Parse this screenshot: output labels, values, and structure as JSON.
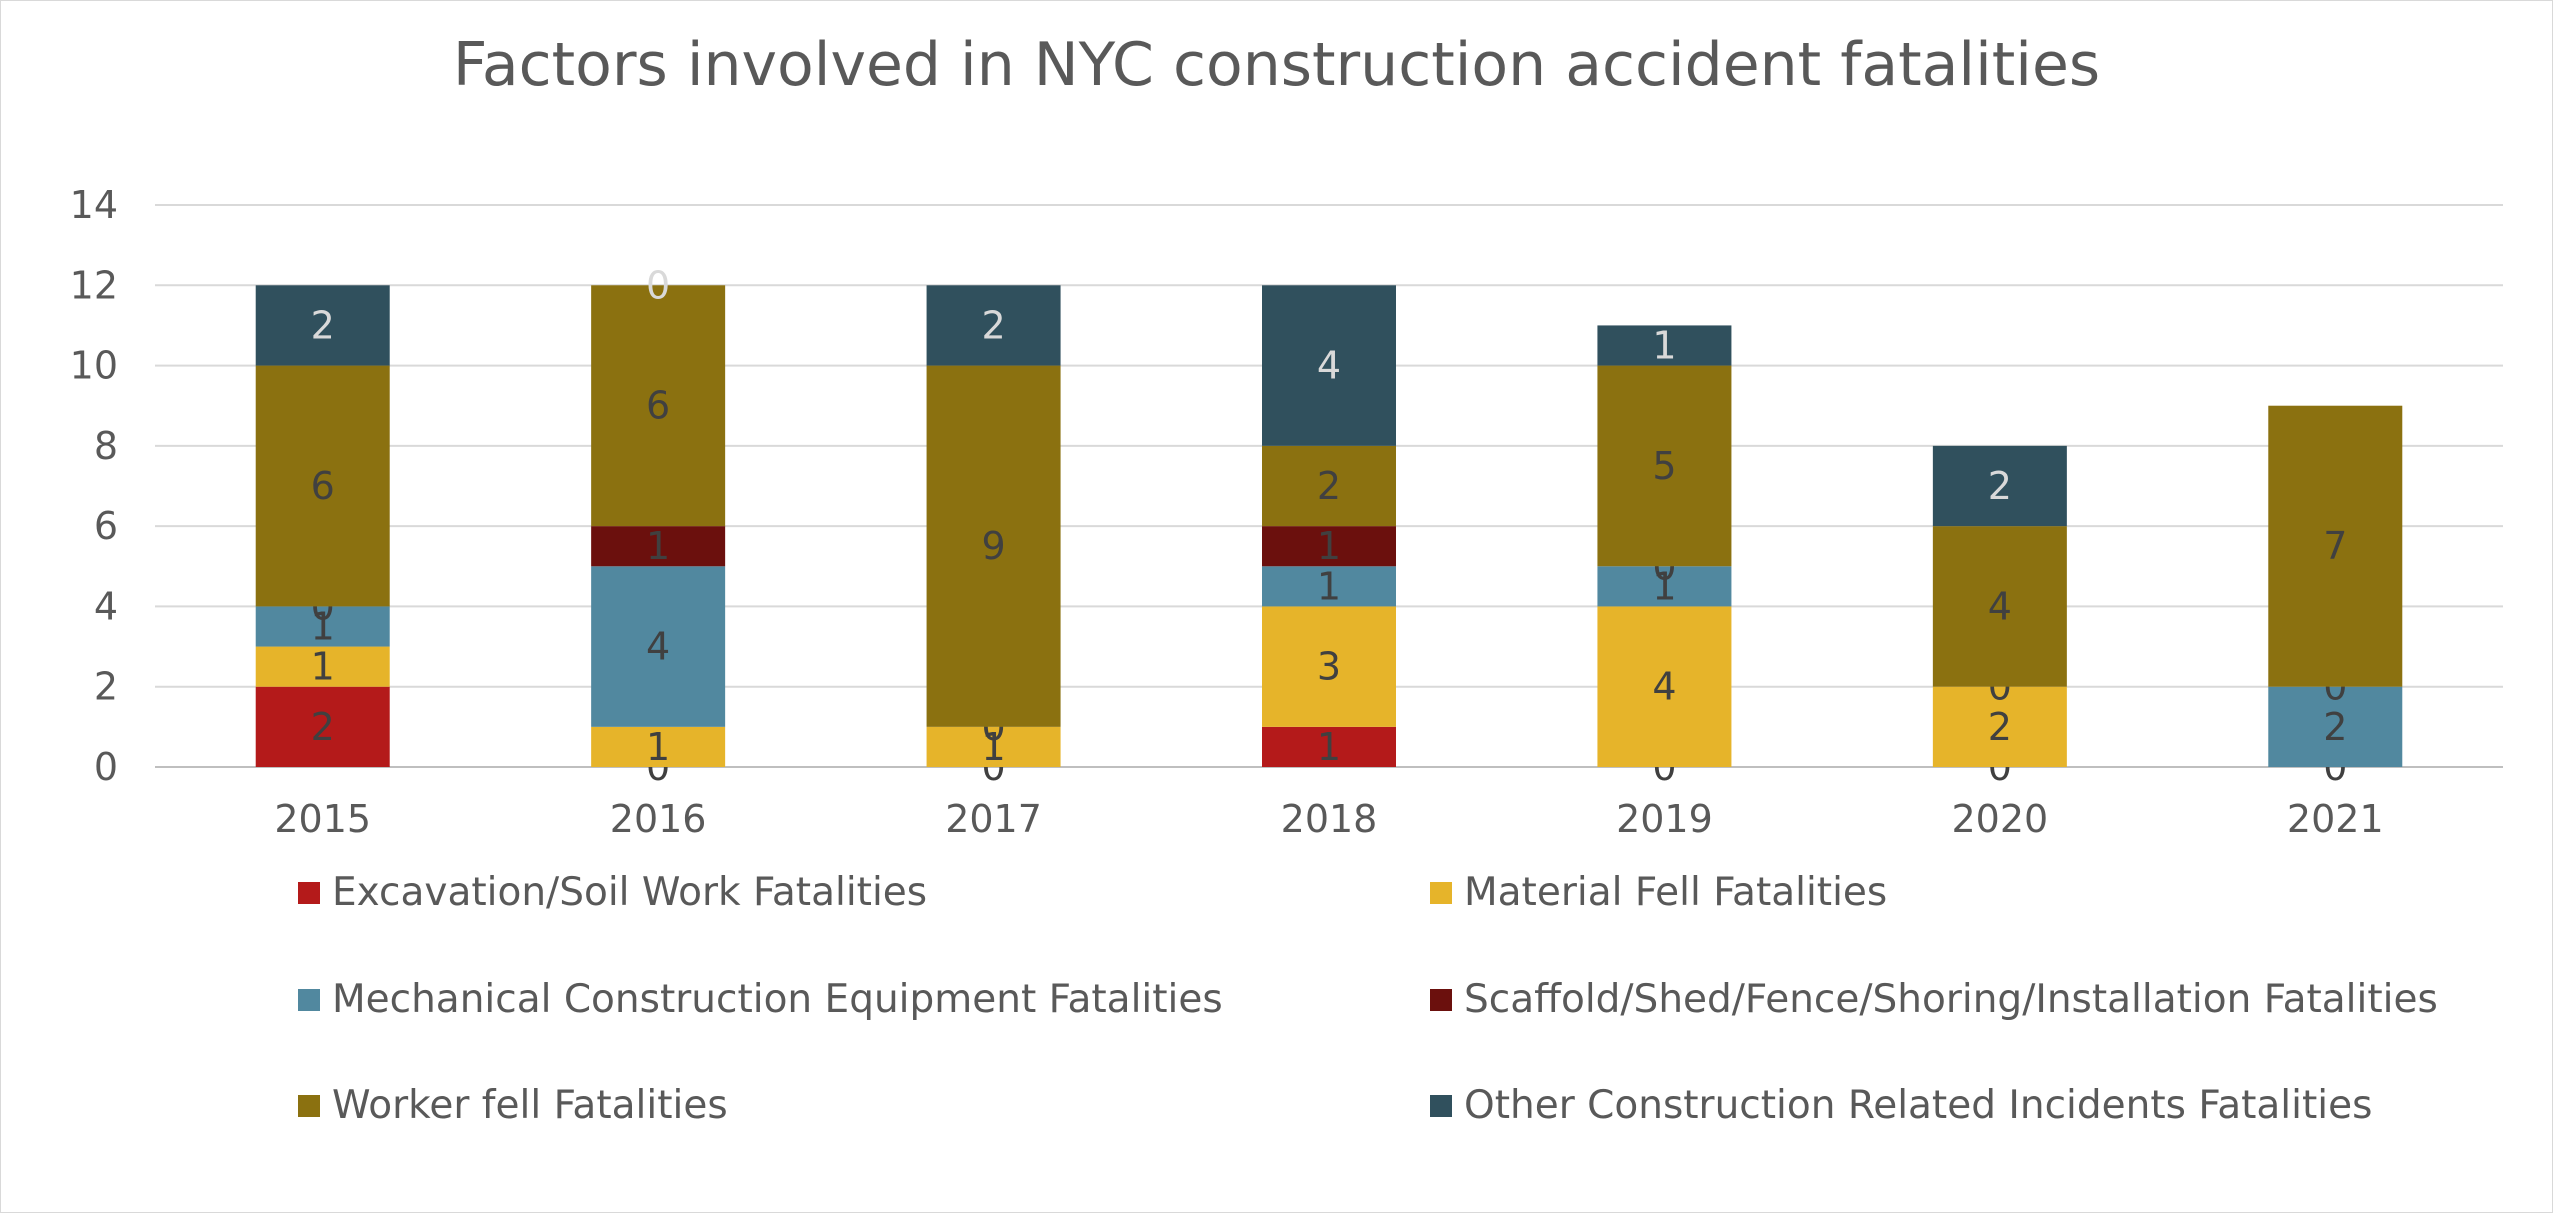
{
  "chart_data": {
    "type": "bar",
    "stacked": true,
    "title": "Factors involved in NYC construction accident fatalities",
    "xlabel": "",
    "ylabel": "",
    "categories": [
      "2015",
      "2016",
      "2017",
      "2018",
      "2019",
      "2020",
      "2021"
    ],
    "ylim": [
      0,
      14
    ],
    "yticks": [
      0,
      2,
      4,
      6,
      8,
      10,
      12,
      14
    ],
    "grid": true,
    "legend_position": "bottom",
    "series": [
      {
        "name": "Excavation/Soil Work Fatalities",
        "color": "#b41a1a",
        "values": [
          2,
          0,
          0,
          1,
          0,
          0,
          0
        ],
        "labels": [
          "2",
          "0",
          "0",
          "1",
          "0",
          "0",
          "0"
        ]
      },
      {
        "name": "Material Fell Fatalities",
        "color": "#e6b42a",
        "values": [
          1,
          1,
          1,
          3,
          4,
          2,
          0
        ],
        "labels": [
          "1",
          "1",
          "1",
          "3",
          "4",
          "2",
          ""
        ]
      },
      {
        "name": "Mechanical Construction Equipment Fatalities",
        "color": "#51889f",
        "values": [
          1,
          4,
          0,
          1,
          1,
          0,
          2
        ],
        "labels": [
          "1",
          "4",
          "0",
          "1",
          "1",
          "0",
          "2"
        ]
      },
      {
        "name": "Scaffold/Shed/Fence/Shoring/Installation Fatalities",
        "color": "#6b100d",
        "values": [
          0,
          1,
          0,
          1,
          0,
          0,
          0
        ],
        "labels": [
          "0",
          "1",
          "",
          "1",
          "0",
          "",
          "0"
        ]
      },
      {
        "name": "Worker fell Fatalities",
        "color": "#8b7110",
        "values": [
          6,
          6,
          9,
          2,
          5,
          4,
          7
        ],
        "labels": [
          "6",
          "6",
          "9",
          "2",
          "5",
          "4",
          "7"
        ]
      },
      {
        "name": "Other Construction Related Incidents Fatalities",
        "color": "#30505d",
        "values": [
          2,
          0,
          2,
          4,
          1,
          2,
          0
        ],
        "labels": [
          "2",
          "0",
          "2",
          "4",
          "1",
          "2",
          ""
        ]
      }
    ]
  }
}
